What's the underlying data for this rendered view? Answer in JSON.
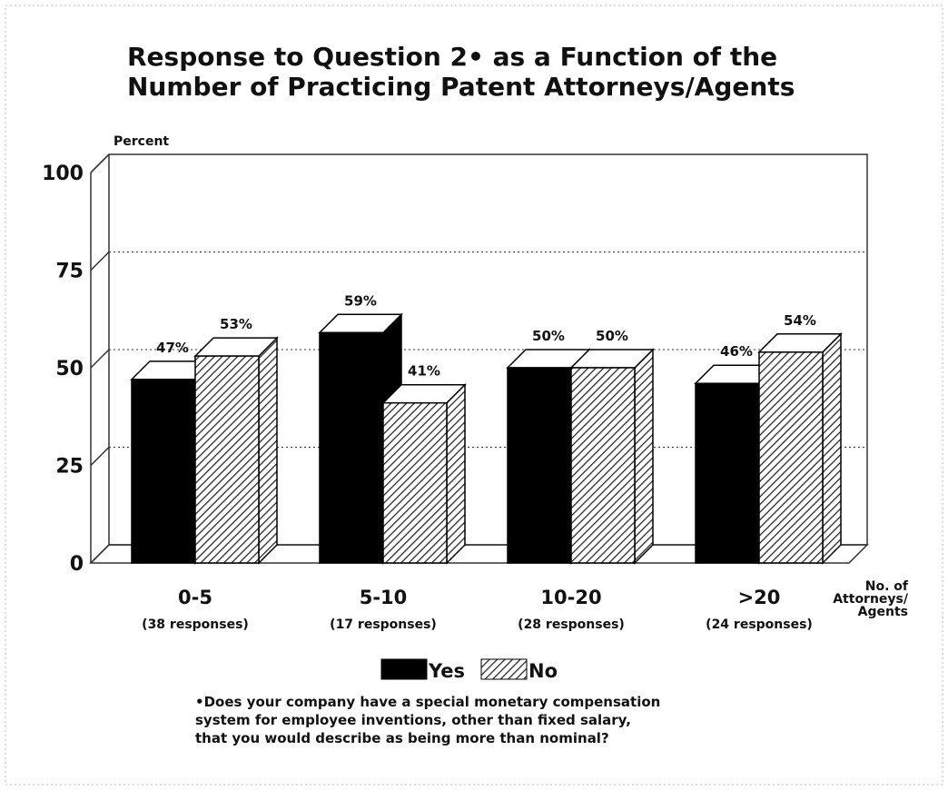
{
  "chart_data": {
    "type": "bar3d",
    "title": [
      "Response to Question 2• as a Function of the",
      "Number of Practicing Patent Attorneys/Agents"
    ],
    "y_label": "Percent",
    "x_label": [
      "No. of",
      "Attorneys/",
      "Agents"
    ],
    "categories": [
      "0-5",
      "5-10",
      "10-20",
      ">20"
    ],
    "category_notes": [
      "(38 responses)",
      "(17 responses)",
      "(28 responses)",
      "(24 responses)"
    ],
    "series": [
      {
        "name": "Yes",
        "color": "#000000",
        "values": [
          47,
          59,
          50,
          46
        ],
        "value_labels": [
          "47%",
          "59%",
          "50%",
          "46%"
        ]
      },
      {
        "name": "No",
        "color": "hatch",
        "values": [
          53,
          41,
          50,
          54
        ],
        "value_labels": [
          "53%",
          "41%",
          "50%",
          "54%"
        ]
      }
    ],
    "ylim": [
      0,
      100
    ],
    "yticks": [
      0,
      25,
      50,
      75,
      100
    ],
    "grid": true,
    "footnote": [
      "•Does your company have a special monetary compensation",
      "system for employee inventions, other than fixed salary,",
      "that you would describe as being more than nominal?"
    ]
  }
}
